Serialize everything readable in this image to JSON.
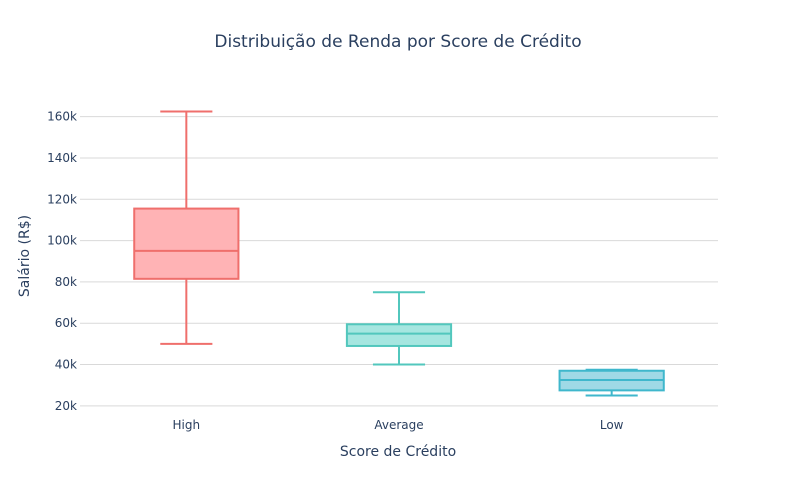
{
  "chart_data": {
    "type": "box",
    "title": "Distribuição de Renda por Score de Crédito",
    "xlabel": "Score de Crédito",
    "ylabel": "Salário (R$)",
    "categories": [
      "High",
      "Average",
      "Low"
    ],
    "ylim": [
      18000,
      170000
    ],
    "yticks": [
      20000,
      40000,
      60000,
      80000,
      100000,
      120000,
      140000,
      160000
    ],
    "ytick_labels": [
      "20k",
      "40k",
      "60k",
      "80k",
      "100k",
      "120k",
      "140k",
      "160k"
    ],
    "grid": true,
    "legend": "none",
    "series": [
      {
        "category": "High",
        "min": 50000,
        "q1": 81500,
        "median": 95000,
        "q3": 115500,
        "max": 162500,
        "color": "#ef6f6c",
        "fill": "#ffb3b5"
      },
      {
        "category": "Average",
        "min": 40000,
        "q1": 49000,
        "median": 55000,
        "q3": 59500,
        "max": 75000,
        "color": "#52c7bd",
        "fill": "#a6e6e0"
      },
      {
        "category": "Low",
        "min": 25000,
        "q1": 27500,
        "median": 32500,
        "q3": 37000,
        "max": 37500,
        "color": "#3fb7cc",
        "fill": "#9fd9e6"
      }
    ]
  }
}
